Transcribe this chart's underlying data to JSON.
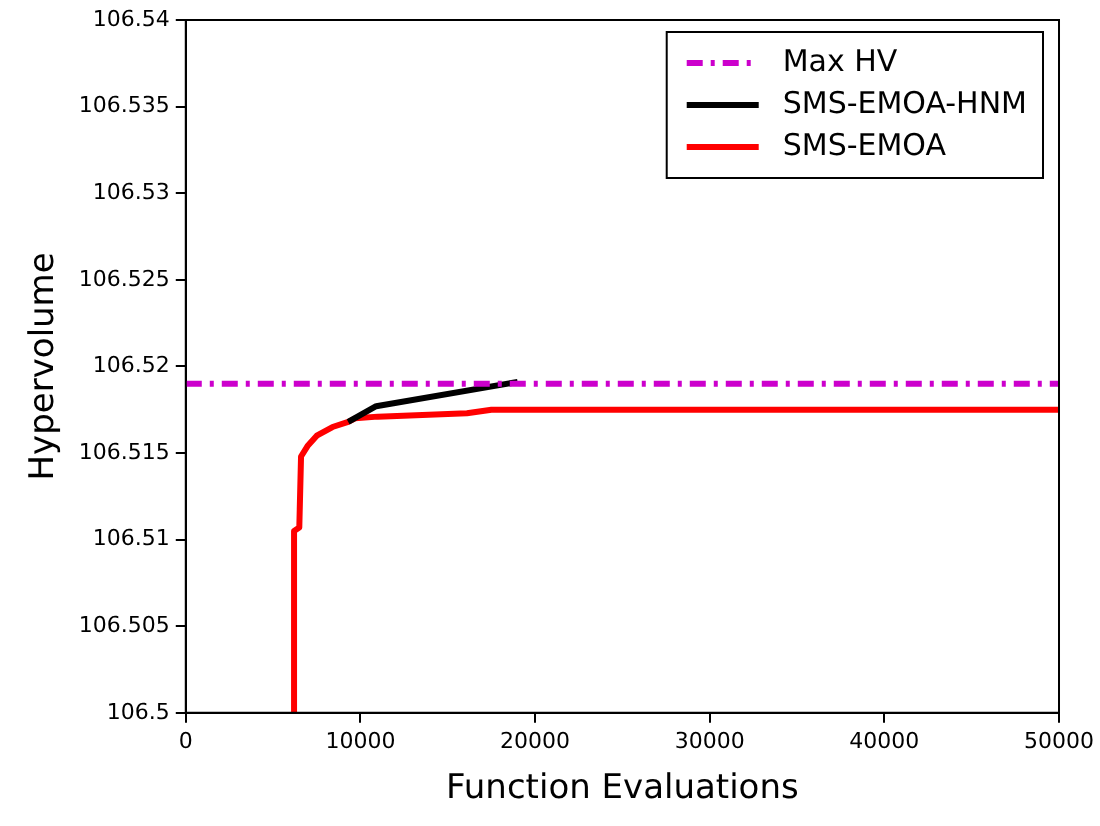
{
  "chart_data": {
    "type": "line",
    "xlabel": "Function Evaluations",
    "ylabel": "Hypervolume",
    "xlim": [
      0,
      50000
    ],
    "xticks": [
      0,
      10000,
      20000,
      30000,
      40000,
      50000
    ],
    "ylim": [
      106.5,
      106.54
    ],
    "yticks": [
      106.5,
      106.505,
      106.51,
      106.515,
      106.52,
      106.525,
      106.53,
      106.535,
      106.54
    ],
    "grid": false,
    "legend": "top right",
    "marker": "none",
    "series": [
      {
        "name": "Max HV",
        "color": "#cc00cc",
        "line_style": "dashdot",
        "x": [
          0,
          50000
        ],
        "values": [
          106.519,
          106.519
        ]
      },
      {
        "name": "SMS-EMOA-HNM",
        "color": "#000000",
        "line_style": "solid",
        "x": [
          9300,
          10900,
          19000
        ],
        "values": [
          106.5168,
          106.5177,
          106.5191
        ]
      },
      {
        "name": "SMS-EMOA",
        "color": "#ff0000",
        "line_style": "solid",
        "x": [
          6200,
          6200,
          6500,
          6600,
          6970,
          7500,
          8400,
          9300,
          9700,
          11000,
          16100,
          17500,
          50000
        ],
        "values": [
          106.5,
          106.5105,
          106.5107,
          106.5148,
          106.5154,
          106.516,
          106.5165,
          106.5168,
          106.517,
          106.5171,
          106.5173,
          106.5175,
          106.5175
        ]
      }
    ]
  }
}
